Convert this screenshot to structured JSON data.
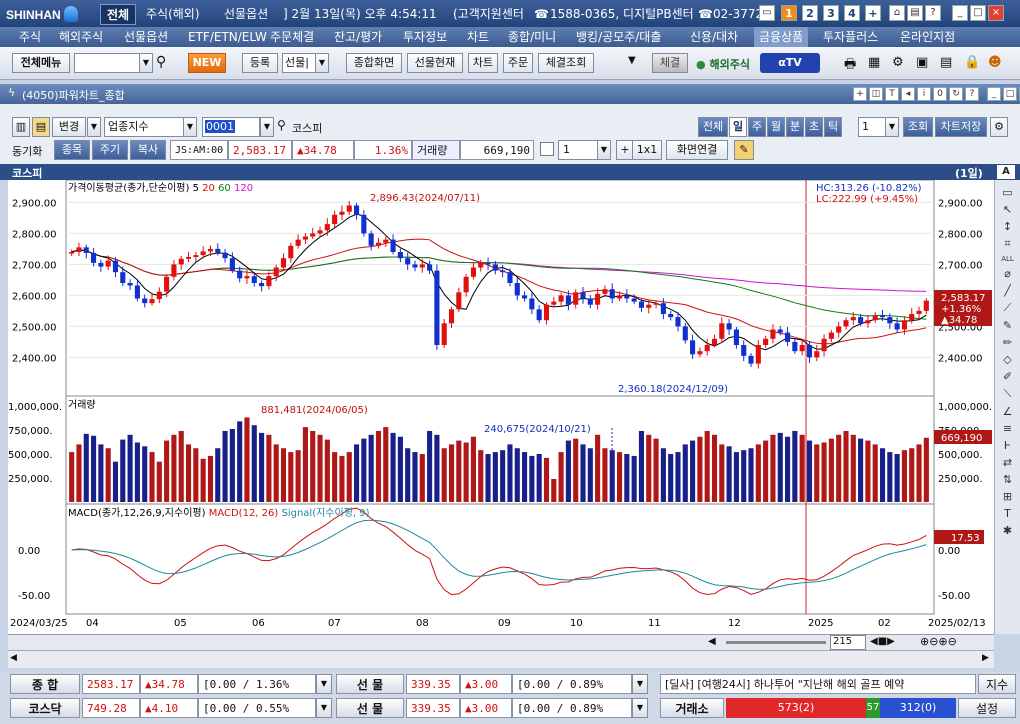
{
  "titlebar": {
    "logo": "SHINHAN",
    "tab_all": "전체",
    "tab_overseas": "주식(해외)",
    "tab_futures": "선물옵션",
    "datetime": "] 2월 13일(목) 오후 4:54:11",
    "support": "(고객지원센터",
    "phone_icon": "phone-icon",
    "phone": "1588-0365, 디지털PB센터",
    "phone2": "02-3772-",
    "screens": [
      "1",
      "2",
      "3",
      "4",
      "+"
    ],
    "active_screen": "1"
  },
  "menu": {
    "items": [
      "주식",
      "해외주식",
      "선물옵션",
      "ETF/ETN/ELW",
      "주문체결",
      "잔고/평가",
      "투자정보",
      "차트",
      "종합/미니",
      "뱅킹/공모주/대출",
      "신용/대차",
      "금융상품",
      "투자플러스",
      "온라인지점"
    ],
    "selected": "금융상품"
  },
  "toolbar": {
    "all_menu": "전체메뉴",
    "new_badge": "NEW",
    "register": "등록",
    "preset": "선물|",
    "combo": "종합화면",
    "futures_status": "선물현재",
    "chart": "차트",
    "order": "주문",
    "fill_query": "체결조회",
    "fill": "체결",
    "overseas_stock": "해외주식",
    "atv": "αTV"
  },
  "subwin": {
    "title": "(4050)파워차트_종합"
  },
  "controls": {
    "change": "변경",
    "category": "업종지수",
    "code": "0001",
    "index_name": "코스피",
    "sync": "동기화",
    "item": "종목",
    "period": "주기",
    "copy": "복사",
    "ticker": "JS:AM:00",
    "price": "2,583.17",
    "change_amt": "▲34.78",
    "change_pct": "1.36%",
    "volume_label": "거래량",
    "volume": "669,190",
    "count": "1",
    "one_by_one": "1x1",
    "link": "화면연결",
    "periods": [
      "전체",
      "일",
      "주",
      "월",
      "분",
      "초",
      "틱"
    ],
    "selected_period": "일",
    "tick_count": "1",
    "query": "조회",
    "chart_save": "차트저장"
  },
  "chart_header": {
    "title": "코스피",
    "period_tag": "(1일)"
  },
  "chart_data": {
    "type": "candlestick",
    "price_panel": {
      "label": "가격이동평균(종가,단순이평)",
      "ma": [
        "5",
        "20",
        "60",
        "120"
      ],
      "ma_colors": [
        "#000000",
        "#d01010",
        "#108010",
        "#d010d0"
      ],
      "yticks": [
        "2,900.00",
        "2,800.00",
        "2,700.00",
        "2,600.00",
        "2,500.00",
        "2,400.00"
      ],
      "ylim": [
        2340,
        2940
      ],
      "high_note": "2,896.43(2024/07/11)",
      "low_note": "2,360.18(2024/12/09)",
      "hc": "HC:313.26 (-10.82%)",
      "lc": "LC:222.99 (+9.45%)",
      "last_price": "2,583.17",
      "last_pct": "+1.36%",
      "last_change": "▲34.78"
    },
    "volume_panel": {
      "label": "거래량",
      "yticks": [
        "1,000,000.",
        "750,000.",
        "500,000.",
        "250,000."
      ],
      "ylim": [
        0,
        1000000
      ],
      "max_note": "881,481(2024/06/05)",
      "cursor_note": "240,675(2024/10/21)",
      "last": "669,190"
    },
    "macd_panel": {
      "label": "MACD(종가,12,26,9,지수이평)",
      "macd": "MACD(12, 26)",
      "signal": "Signal(지수이평, 9)",
      "yticks": [
        "0.00",
        "-50.00"
      ],
      "last": "17.53"
    },
    "xaxis": [
      "2024/03/25",
      "04",
      "05",
      "06",
      "07",
      "08",
      "09",
      "10",
      "11",
      "12",
      "2025",
      "02",
      "2025/02/13"
    ],
    "scroll_value": "215",
    "closes": [
      2740,
      2755,
      2737,
      2705,
      2693,
      2712,
      2675,
      2640,
      2632,
      2590,
      2575,
      2588,
      2612,
      2660,
      2700,
      2718,
      2724,
      2730,
      2742,
      2750,
      2738,
      2720,
      2680,
      2655,
      2662,
      2640,
      2630,
      2662,
      2690,
      2720,
      2760,
      2780,
      2790,
      2800,
      2810,
      2830,
      2860,
      2870,
      2890,
      2860,
      2800,
      2760,
      2770,
      2780,
      2740,
      2720,
      2700,
      2690,
      2700,
      2680,
      2440,
      2510,
      2555,
      2610,
      2660,
      2690,
      2705,
      2700,
      2680,
      2675,
      2640,
      2600,
      2590,
      2555,
      2520,
      2570,
      2580,
      2600,
      2570,
      2610,
      2590,
      2570,
      2605,
      2620,
      2590,
      2600,
      2590,
      2580,
      2560,
      2570,
      2575,
      2540,
      2530,
      2500,
      2455,
      2410,
      2420,
      2440,
      2460,
      2510,
      2490,
      2440,
      2405,
      2380,
      2440,
      2460,
      2490,
      2480,
      2450,
      2420,
      2440,
      2400,
      2420,
      2460,
      2480,
      2500,
      2520,
      2530,
      2510,
      2520,
      2535,
      2530,
      2510,
      2490,
      2520,
      2540,
      2550,
      2583
    ],
    "volumes": [
      520,
      600,
      710,
      690,
      600,
      560,
      420,
      650,
      700,
      620,
      580,
      520,
      420,
      640,
      700,
      740,
      600,
      560,
      450,
      480,
      560,
      740,
      760,
      840,
      881,
      800,
      720,
      700,
      600,
      560,
      520,
      540,
      780,
      740,
      700,
      650,
      520,
      480,
      520,
      600,
      660,
      700,
      740,
      780,
      720,
      680,
      560,
      520,
      500,
      740,
      700,
      560,
      600,
      640,
      620,
      680,
      540,
      500,
      520,
      540,
      600,
      560,
      520,
      480,
      500,
      460,
      240,
      520,
      640,
      660,
      600,
      560,
      700,
      560,
      540,
      520,
      500,
      480,
      740,
      700,
      660,
      560,
      500,
      520,
      600,
      640,
      680,
      740,
      700,
      600,
      580,
      520,
      540,
      560,
      600,
      640,
      700,
      720,
      680,
      740,
      700,
      640,
      600,
      620,
      660,
      700,
      740,
      700,
      660,
      640,
      600,
      560,
      520,
      500,
      540,
      560,
      600,
      669
    ]
  },
  "bottom": {
    "row1": {
      "label1": "종 합",
      "v1": "2583.17",
      "c1": "▲34.78",
      "p1": "[0.00 / 1.36%",
      "label2": "선 물",
      "v2": "339.35",
      "c2": "▲3.00",
      "p2": "[0.00 / 0.89%",
      "news": "[딜사] [여행24시] 하나투어 \"지난해 해외 골프 예약",
      "idx": "지수"
    },
    "row2": {
      "label1": "코스닥",
      "v1": "749.28",
      "c1": "▲4.10",
      "p1": "[0.00 / 0.55%",
      "label2": "선 물",
      "v2": "339.35",
      "c2": "▲3.00",
      "p2": "[0.00 / 0.89%",
      "exchange": "거래소",
      "up": "573(2)",
      "flat": "57",
      "down": "312(0)",
      "settings": "설정"
    }
  }
}
